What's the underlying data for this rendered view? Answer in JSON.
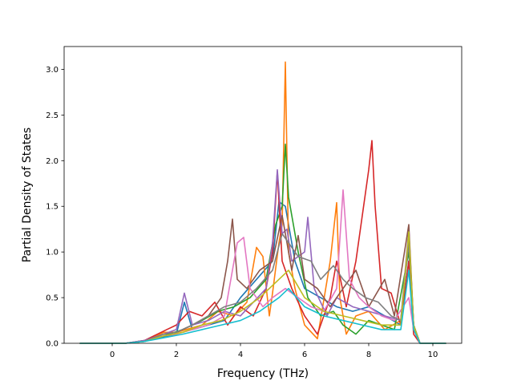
{
  "chart_data": {
    "type": "line",
    "title": "",
    "xlabel": "Frequency (THz)",
    "ylabel": "Partial Density of States",
    "xlim": [
      -1.5,
      10.9
    ],
    "ylim": [
      0,
      3.25
    ],
    "xticks": [
      0,
      2,
      4,
      6,
      8,
      10
    ],
    "xtick_labels": [
      "0",
      "2",
      "4",
      "6",
      "8",
      "10"
    ],
    "yticks": [
      0.0,
      0.5,
      1.0,
      1.5,
      2.0,
      2.5,
      3.0
    ],
    "ytick_labels": [
      "0.0",
      "0.5",
      "1.0",
      "1.5",
      "2.0",
      "2.5",
      "3.0"
    ],
    "grid": false,
    "legend": "none",
    "x_range": [
      -1.0,
      10.4
    ],
    "series": [
      {
        "color": "#1f77b4",
        "points": [
          [
            0.4,
            0.0
          ],
          [
            1.0,
            0.03
          ],
          [
            1.6,
            0.07
          ],
          [
            2.0,
            0.1
          ],
          [
            2.25,
            0.45
          ],
          [
            2.5,
            0.15
          ],
          [
            3.0,
            0.2
          ],
          [
            3.5,
            0.25
          ],
          [
            4.0,
            0.5
          ],
          [
            4.5,
            0.7
          ],
          [
            5.0,
            0.9
          ],
          [
            5.2,
            1.55
          ],
          [
            5.4,
            1.5
          ],
          [
            5.7,
            0.9
          ],
          [
            6.0,
            0.6
          ],
          [
            6.5,
            0.5
          ],
          [
            7.0,
            0.4
          ],
          [
            7.5,
            0.35
          ],
          [
            8.0,
            0.4
          ],
          [
            8.5,
            0.3
          ],
          [
            9.0,
            0.2
          ],
          [
            9.25,
            0.9
          ],
          [
            9.4,
            0.2
          ],
          [
            9.6,
            0.0
          ]
        ]
      },
      {
        "color": "#ff7f0e",
        "points": [
          [
            0.4,
            0.0
          ],
          [
            1.0,
            0.02
          ],
          [
            1.6,
            0.12
          ],
          [
            2.0,
            0.12
          ],
          [
            2.3,
            0.15
          ],
          [
            2.8,
            0.2
          ],
          [
            3.3,
            0.35
          ],
          [
            3.8,
            0.3
          ],
          [
            4.2,
            0.45
          ],
          [
            4.5,
            1.05
          ],
          [
            4.7,
            0.95
          ],
          [
            4.9,
            0.3
          ],
          [
            5.0,
            0.55
          ],
          [
            5.2,
            1.1
          ],
          [
            5.3,
            1.3
          ],
          [
            5.4,
            3.08
          ],
          [
            5.5,
            1.0
          ],
          [
            5.7,
            0.6
          ],
          [
            6.0,
            0.2
          ],
          [
            6.4,
            0.05
          ],
          [
            6.8,
            0.9
          ],
          [
            7.0,
            1.54
          ],
          [
            7.1,
            0.5
          ],
          [
            7.3,
            0.1
          ],
          [
            7.6,
            0.3
          ],
          [
            8.0,
            0.35
          ],
          [
            8.5,
            0.15
          ],
          [
            9.0,
            0.25
          ],
          [
            9.25,
            1.2
          ],
          [
            9.4,
            0.2
          ],
          [
            9.6,
            0.0
          ]
        ]
      },
      {
        "color": "#2ca02c",
        "points": [
          [
            0.4,
            0.0
          ],
          [
            1.0,
            0.02
          ],
          [
            1.6,
            0.08
          ],
          [
            2.2,
            0.15
          ],
          [
            2.8,
            0.25
          ],
          [
            3.3,
            0.35
          ],
          [
            3.8,
            0.4
          ],
          [
            4.3,
            0.5
          ],
          [
            4.8,
            0.7
          ],
          [
            5.1,
            1.3
          ],
          [
            5.3,
            1.5
          ],
          [
            5.4,
            2.18
          ],
          [
            5.5,
            1.6
          ],
          [
            5.8,
            1.0
          ],
          [
            6.1,
            0.5
          ],
          [
            6.5,
            0.3
          ],
          [
            6.9,
            0.35
          ],
          [
            7.2,
            0.2
          ],
          [
            7.6,
            0.1
          ],
          [
            8.0,
            0.25
          ],
          [
            8.4,
            0.2
          ],
          [
            8.8,
            0.15
          ],
          [
            9.25,
            1.0
          ],
          [
            9.4,
            0.2
          ],
          [
            9.6,
            0.0
          ]
        ]
      },
      {
        "color": "#d62728",
        "points": [
          [
            0.4,
            0.0
          ],
          [
            1.0,
            0.03
          ],
          [
            1.7,
            0.15
          ],
          [
            2.0,
            0.2
          ],
          [
            2.4,
            0.35
          ],
          [
            2.8,
            0.3
          ],
          [
            3.2,
            0.45
          ],
          [
            3.6,
            0.2
          ],
          [
            4.0,
            0.4
          ],
          [
            4.4,
            0.3
          ],
          [
            4.8,
            0.6
          ],
          [
            5.0,
            1.0
          ],
          [
            5.15,
            1.88
          ],
          [
            5.3,
            0.9
          ],
          [
            5.6,
            0.6
          ],
          [
            6.0,
            0.3
          ],
          [
            6.4,
            0.1
          ],
          [
            6.8,
            0.5
          ],
          [
            7.0,
            0.9
          ],
          [
            7.3,
            0.4
          ],
          [
            7.6,
            0.9
          ],
          [
            8.0,
            1.9
          ],
          [
            8.1,
            2.22
          ],
          [
            8.2,
            1.5
          ],
          [
            8.4,
            0.6
          ],
          [
            8.7,
            0.55
          ],
          [
            9.0,
            0.2
          ],
          [
            9.25,
            0.9
          ],
          [
            9.4,
            0.1
          ],
          [
            9.6,
            0.0
          ]
        ]
      },
      {
        "color": "#9467bd",
        "points": [
          [
            0.4,
            0.0
          ],
          [
            1.0,
            0.03
          ],
          [
            1.6,
            0.1
          ],
          [
            2.0,
            0.15
          ],
          [
            2.25,
            0.55
          ],
          [
            2.5,
            0.2
          ],
          [
            3.0,
            0.25
          ],
          [
            3.5,
            0.35
          ],
          [
            4.0,
            0.3
          ],
          [
            4.4,
            0.45
          ],
          [
            4.8,
            0.6
          ],
          [
            5.0,
            1.1
          ],
          [
            5.15,
            1.9
          ],
          [
            5.3,
            1.2
          ],
          [
            5.45,
            1.25
          ],
          [
            5.6,
            0.9
          ],
          [
            6.0,
            1.0
          ],
          [
            6.1,
            1.38
          ],
          [
            6.3,
            0.6
          ],
          [
            6.7,
            0.3
          ],
          [
            7.0,
            0.5
          ],
          [
            7.5,
            0.4
          ],
          [
            8.0,
            0.35
          ],
          [
            8.5,
            0.3
          ],
          [
            9.0,
            0.25
          ],
          [
            9.25,
            1.25
          ],
          [
            9.4,
            0.2
          ],
          [
            9.6,
            0.0
          ]
        ]
      },
      {
        "color": "#8c564b",
        "points": [
          [
            0.4,
            0.0
          ],
          [
            1.0,
            0.02
          ],
          [
            1.6,
            0.1
          ],
          [
            2.0,
            0.12
          ],
          [
            2.5,
            0.2
          ],
          [
            3.0,
            0.3
          ],
          [
            3.4,
            0.5
          ],
          [
            3.6,
            0.9
          ],
          [
            3.75,
            1.36
          ],
          [
            3.9,
            0.7
          ],
          [
            4.2,
            0.6
          ],
          [
            4.6,
            0.8
          ],
          [
            5.0,
            0.9
          ],
          [
            5.3,
            1.4
          ],
          [
            5.6,
            0.8
          ],
          [
            5.8,
            1.18
          ],
          [
            6.0,
            0.7
          ],
          [
            6.4,
            0.6
          ],
          [
            6.8,
            0.4
          ],
          [
            7.2,
            0.6
          ],
          [
            7.6,
            0.8
          ],
          [
            8.0,
            0.4
          ],
          [
            8.5,
            0.7
          ],
          [
            8.8,
            0.3
          ],
          [
            9.25,
            1.3
          ],
          [
            9.4,
            0.2
          ],
          [
            9.6,
            0.0
          ]
        ]
      },
      {
        "color": "#e377c2",
        "points": [
          [
            0.4,
            0.0
          ],
          [
            1.0,
            0.02
          ],
          [
            1.6,
            0.08
          ],
          [
            2.0,
            0.1
          ],
          [
            2.5,
            0.15
          ],
          [
            3.0,
            0.2
          ],
          [
            3.5,
            0.3
          ],
          [
            3.9,
            1.1
          ],
          [
            4.1,
            1.16
          ],
          [
            4.3,
            0.6
          ],
          [
            4.7,
            0.4
          ],
          [
            5.0,
            0.5
          ],
          [
            5.4,
            0.6
          ],
          [
            5.8,
            0.5
          ],
          [
            6.2,
            0.4
          ],
          [
            6.6,
            0.35
          ],
          [
            7.0,
            0.6
          ],
          [
            7.2,
            1.68
          ],
          [
            7.4,
            0.7
          ],
          [
            7.7,
            0.5
          ],
          [
            8.0,
            0.4
          ],
          [
            8.4,
            0.3
          ],
          [
            8.8,
            0.25
          ],
          [
            9.25,
            0.5
          ],
          [
            9.4,
            0.15
          ],
          [
            9.6,
            0.0
          ]
        ]
      },
      {
        "color": "#7f7f7f",
        "points": [
          [
            0.4,
            0.0
          ],
          [
            1.0,
            0.02
          ],
          [
            1.6,
            0.1
          ],
          [
            2.0,
            0.12
          ],
          [
            2.5,
            0.2
          ],
          [
            3.0,
            0.3
          ],
          [
            3.5,
            0.4
          ],
          [
            4.0,
            0.45
          ],
          [
            4.5,
            0.6
          ],
          [
            5.0,
            0.8
          ],
          [
            5.3,
            1.2
          ],
          [
            5.5,
            1.1
          ],
          [
            5.8,
            0.95
          ],
          [
            6.2,
            0.9
          ],
          [
            6.5,
            0.7
          ],
          [
            6.9,
            0.85
          ],
          [
            7.2,
            0.7
          ],
          [
            7.5,
            0.6
          ],
          [
            7.9,
            0.5
          ],
          [
            8.3,
            0.45
          ],
          [
            8.7,
            0.3
          ],
          [
            9.0,
            0.25
          ],
          [
            9.25,
            1.1
          ],
          [
            9.4,
            0.2
          ],
          [
            9.6,
            0.0
          ]
        ]
      },
      {
        "color": "#bcbd22",
        "points": [
          [
            0.4,
            0.0
          ],
          [
            1.0,
            0.02
          ],
          [
            1.6,
            0.08
          ],
          [
            2.2,
            0.12
          ],
          [
            2.8,
            0.2
          ],
          [
            3.4,
            0.25
          ],
          [
            4.0,
            0.35
          ],
          [
            4.6,
            0.5
          ],
          [
            5.2,
            0.7
          ],
          [
            5.5,
            0.8
          ],
          [
            6.0,
            0.5
          ],
          [
            6.6,
            0.35
          ],
          [
            7.2,
            0.3
          ],
          [
            7.8,
            0.25
          ],
          [
            8.4,
            0.2
          ],
          [
            9.0,
            0.2
          ],
          [
            9.25,
            1.22
          ],
          [
            9.4,
            0.2
          ],
          [
            9.6,
            0.0
          ]
        ]
      },
      {
        "color": "#17becf",
        "points": [
          [
            0.4,
            0.0
          ],
          [
            1.0,
            0.02
          ],
          [
            1.6,
            0.06
          ],
          [
            2.2,
            0.1
          ],
          [
            2.8,
            0.15
          ],
          [
            3.4,
            0.2
          ],
          [
            4.0,
            0.25
          ],
          [
            4.6,
            0.35
          ],
          [
            5.2,
            0.5
          ],
          [
            5.5,
            0.6
          ],
          [
            6.0,
            0.4
          ],
          [
            6.6,
            0.3
          ],
          [
            7.2,
            0.25
          ],
          [
            7.8,
            0.2
          ],
          [
            8.4,
            0.15
          ],
          [
            9.0,
            0.15
          ],
          [
            9.25,
            0.8
          ],
          [
            9.4,
            0.15
          ],
          [
            9.6,
            0.0
          ]
        ]
      }
    ]
  }
}
